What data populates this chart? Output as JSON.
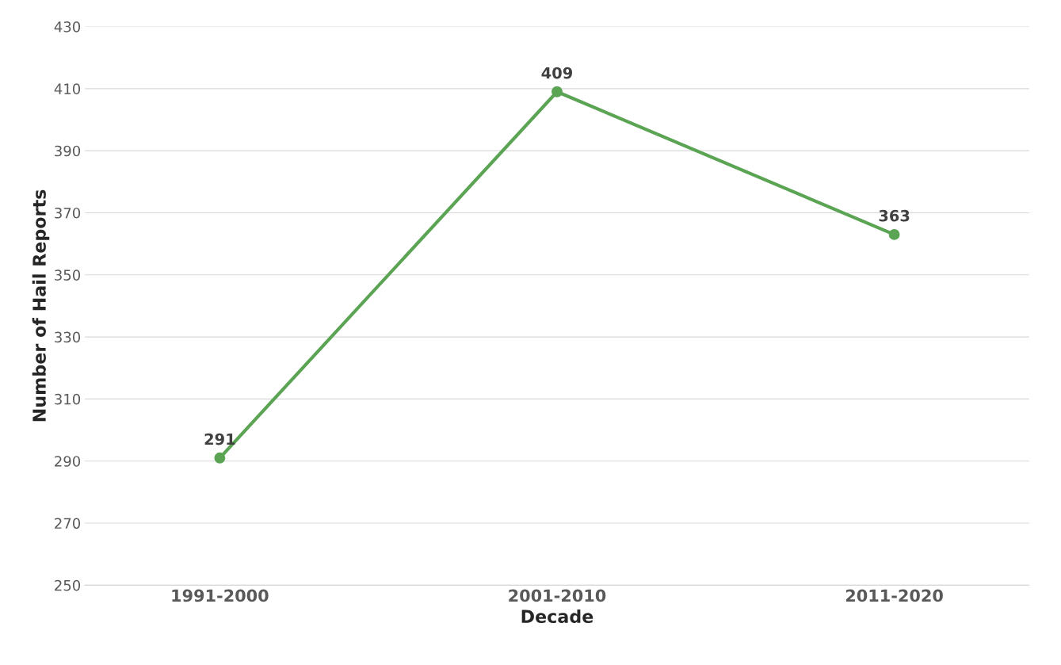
{
  "chart_data": {
    "type": "line",
    "xlabel": "Decade",
    "ylabel": "Number of Hail Reports",
    "categories": [
      "1991-2000",
      "2001-2010",
      "2011-2020"
    ],
    "series": [
      {
        "color": "#5aa454",
        "values": [
          291,
          409,
          363
        ]
      }
    ],
    "ylim": [
      250,
      430
    ],
    "yticks": [
      250,
      270,
      290,
      310,
      330,
      350,
      370,
      390,
      410,
      430
    ],
    "grid": "y",
    "marker": "circle",
    "line_style": "solid",
    "data_labels": true
  }
}
